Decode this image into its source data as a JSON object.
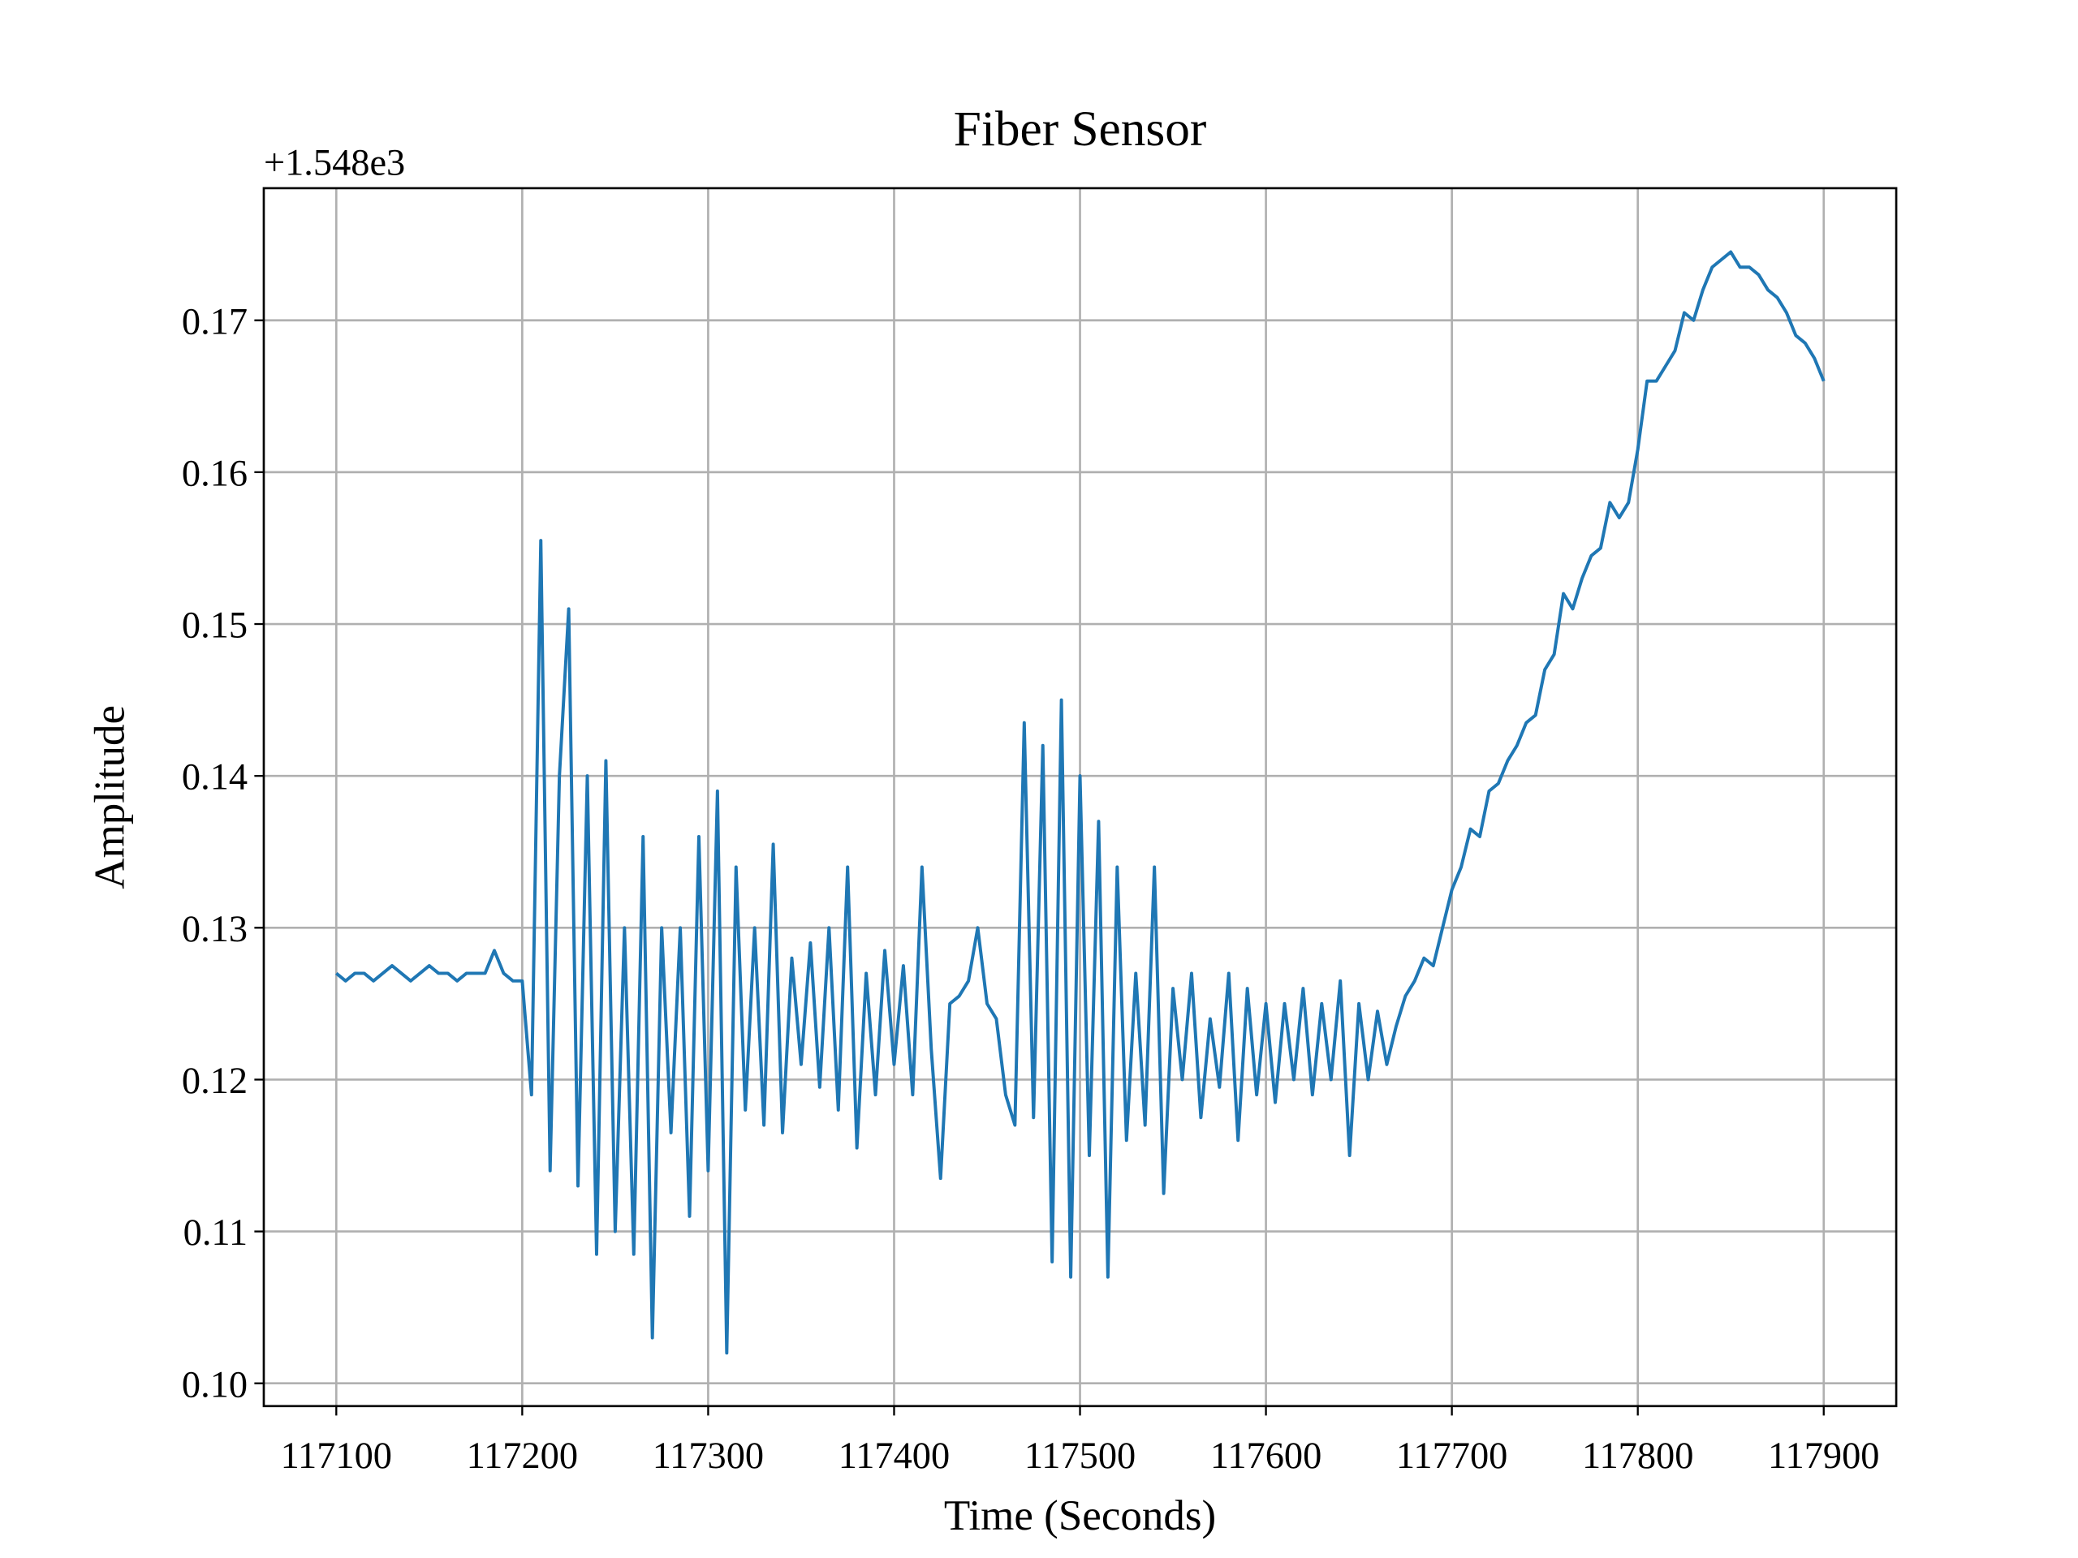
{
  "chart_data": {
    "type": "line",
    "title": "Fiber Sensor",
    "x_label": "Time (Seconds)",
    "y_label": "Amplitude",
    "y_offset_label": "+1.548e3",
    "color": "#1f77b4",
    "grid": true,
    "xlim": [
      117061,
      117939
    ],
    "ylim": [
      0.0985,
      0.1787
    ],
    "xticks": [
      117100,
      117200,
      117300,
      117400,
      117500,
      117600,
      117700,
      117800,
      117900
    ],
    "yticks": [
      {
        "value": 0.1,
        "label": "0.10"
      },
      0.11,
      0.12,
      0.13,
      0.14,
      0.15,
      0.16,
      0.17
    ],
    "x": [
      117100,
      117105,
      117110,
      117115,
      117120,
      117125,
      117130,
      117135,
      117140,
      117145,
      117150,
      117155,
      117160,
      117165,
      117170,
      117175,
      117180,
      117185,
      117190,
      117195,
      117200,
      117205,
      117210,
      117215,
      117220,
      117225,
      117230,
      117235,
      117240,
      117245,
      117250,
      117255,
      117260,
      117265,
      117270,
      117275,
      117280,
      117285,
      117290,
      117295,
      117300,
      117305,
      117310,
      117315,
      117320,
      117325,
      117330,
      117335,
      117340,
      117345,
      117350,
      117355,
      117360,
      117365,
      117370,
      117375,
      117380,
      117385,
      117390,
      117395,
      117400,
      117405,
      117410,
      117415,
      117420,
      117425,
      117430,
      117435,
      117440,
      117445,
      117450,
      117455,
      117460,
      117465,
      117470,
      117475,
      117480,
      117485,
      117490,
      117495,
      117500,
      117505,
      117510,
      117515,
      117520,
      117525,
      117530,
      117535,
      117540,
      117545,
      117550,
      117555,
      117560,
      117565,
      117570,
      117575,
      117580,
      117585,
      117590,
      117595,
      117600,
      117605,
      117610,
      117615,
      117620,
      117625,
      117630,
      117635,
      117640,
      117645,
      117650,
      117655,
      117660,
      117665,
      117670,
      117675,
      117680,
      117685,
      117690,
      117695,
      117700,
      117705,
      117710,
      117715,
      117720,
      117725,
      117730,
      117735,
      117740,
      117745,
      117750,
      117755,
      117760,
      117765,
      117770,
      117775,
      117780,
      117785,
      117790,
      117795,
      117800,
      117805,
      117810,
      117815,
      117820,
      117825,
      117830,
      117835,
      117840,
      117845,
      117850,
      117855,
      117860,
      117865,
      117870,
      117875,
      117880,
      117885,
      117890,
      117895,
      117900
    ],
    "values": [
      0.127,
      0.1265,
      0.127,
      0.127,
      0.1265,
      0.127,
      0.1275,
      0.127,
      0.1265,
      0.127,
      0.1275,
      0.127,
      0.127,
      0.1265,
      0.127,
      0.127,
      0.127,
      0.1285,
      0.127,
      0.1265,
      0.1265,
      0.119,
      0.1555,
      0.114,
      0.14,
      0.151,
      0.113,
      0.14,
      0.1085,
      0.141,
      0.11,
      0.13,
      0.1085,
      0.136,
      0.103,
      0.13,
      0.1165,
      0.13,
      0.111,
      0.136,
      0.114,
      0.139,
      0.102,
      0.134,
      0.118,
      0.13,
      0.117,
      0.1355,
      0.1165,
      0.128,
      0.121,
      0.129,
      0.1195,
      0.13,
      0.118,
      0.134,
      0.1155,
      0.127,
      0.119,
      0.1285,
      0.121,
      0.1275,
      0.119,
      0.134,
      0.122,
      0.1135,
      0.125,
      0.1255,
      0.1265,
      0.13,
      0.125,
      0.124,
      0.119,
      0.117,
      0.1435,
      0.1175,
      0.142,
      0.108,
      0.145,
      0.107,
      0.14,
      0.115,
      0.137,
      0.107,
      0.134,
      0.116,
      0.127,
      0.117,
      0.134,
      0.1125,
      0.126,
      0.12,
      0.127,
      0.1175,
      0.124,
      0.1195,
      0.127,
      0.116,
      0.126,
      0.119,
      0.125,
      0.1185,
      0.125,
      0.12,
      0.126,
      0.119,
      0.125,
      0.12,
      0.1265,
      0.115,
      0.125,
      0.12,
      0.1245,
      0.121,
      0.1235,
      0.1255,
      0.1265,
      0.128,
      0.1275,
      0.13,
      0.1325,
      0.134,
      0.1365,
      0.136,
      0.139,
      0.1395,
      0.141,
      0.142,
      0.1435,
      0.144,
      0.147,
      0.148,
      0.152,
      0.151,
      0.153,
      0.1545,
      0.155,
      0.158,
      0.157,
      0.158,
      0.1615,
      0.166,
      0.166,
      0.167,
      0.168,
      0.1705,
      0.17,
      0.172,
      0.1735,
      0.174,
      0.1745,
      0.1735,
      0.1735,
      0.173,
      0.172,
      0.1715,
      0.1705,
      0.169,
      0.1685,
      0.1675,
      0.166
    ]
  }
}
